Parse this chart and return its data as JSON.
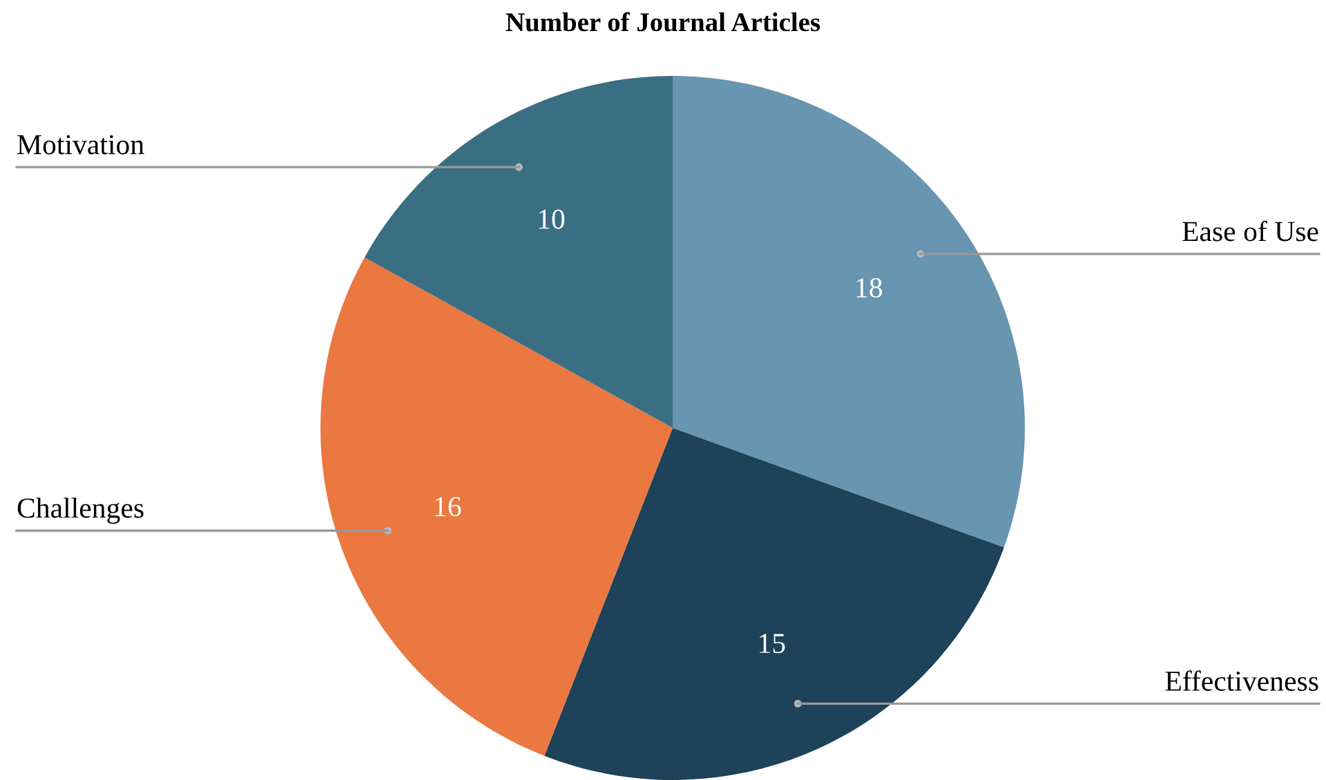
{
  "chart_data": {
    "type": "pie",
    "title": "Number of Journal Articles",
    "categories": [
      "Ease of Use",
      "Effectiveness",
      "Challenges",
      "Motivation"
    ],
    "values": [
      18,
      15,
      16,
      10
    ],
    "colors": [
      "#6895b0",
      "#1d4259",
      "#ea7840",
      "#3a6f83"
    ],
    "data_labels": true
  }
}
